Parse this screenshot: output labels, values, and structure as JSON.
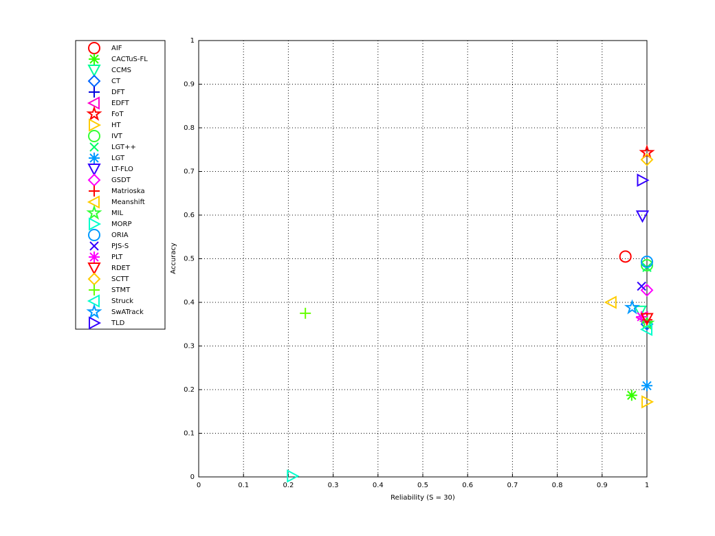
{
  "chart_data": {
    "type": "scatter",
    "x_label": "Reliability (S = 30)",
    "y_label": "Accuracy",
    "xlim": [
      0,
      1
    ],
    "ylim": [
      0,
      1
    ],
    "xticks": [
      0,
      0.1,
      0.2,
      0.3,
      0.4,
      0.5,
      0.6,
      0.7,
      0.8,
      0.9,
      1
    ],
    "yticks": [
      0,
      0.1,
      0.2,
      0.3,
      0.4,
      0.5,
      0.6,
      0.7,
      0.8,
      0.9,
      1
    ],
    "grid": true,
    "legend": "outside-left",
    "series": [
      {
        "name": "AIF",
        "color": "#ff0000",
        "marker": "circle",
        "x": [
          0.952
        ],
        "y": [
          0.505
        ]
      },
      {
        "name": "CACTuS-FL",
        "color": "#33ff00",
        "marker": "asterisk",
        "x": [
          0.966
        ],
        "y": [
          0.187
        ]
      },
      {
        "name": "CCMS",
        "color": "#00ff99",
        "marker": "triangle-down",
        "x": [
          0.985
        ],
        "y": [
          0.38
        ]
      },
      {
        "name": "CT",
        "color": "#0066ff",
        "marker": "diamond",
        "x": [
          1
        ],
        "y": [
          0.35
        ]
      },
      {
        "name": "DFT",
        "color": "#0000dd",
        "marker": "plus",
        "x": [
          1
        ],
        "y": [
          0.355
        ]
      },
      {
        "name": "EDFT",
        "color": "#ff00cc",
        "marker": "triangle-left",
        "x": [
          0.99
        ],
        "y": [
          0.365
        ]
      },
      {
        "name": "FoT",
        "color": "#ff0000",
        "marker": "star",
        "x": [
          1
        ],
        "y": [
          0.743
        ]
      },
      {
        "name": "HT",
        "color": "#ffcc00",
        "marker": "triangle-right",
        "x": [
          1
        ],
        "y": [
          0.172
        ]
      },
      {
        "name": "IVT",
        "color": "#33ff33",
        "marker": "circle",
        "x": [
          1
        ],
        "y": [
          0.485
        ]
      },
      {
        "name": "LGT++",
        "color": "#00ff66",
        "marker": "x",
        "x": [
          1
        ],
        "y": [
          0.48
        ]
      },
      {
        "name": "LGT",
        "color": "#0099ff",
        "marker": "asterisk",
        "x": [
          1
        ],
        "y": [
          0.209
        ]
      },
      {
        "name": "LT-FLO",
        "color": "#3300ff",
        "marker": "triangle-down",
        "x": [
          0.99
        ],
        "y": [
          0.598
        ]
      },
      {
        "name": "GSDT",
        "color": "#ff00ff",
        "marker": "diamond",
        "x": [
          1
        ],
        "y": [
          0.428
        ]
      },
      {
        "name": "Matrioska",
        "color": "#ff0000",
        "marker": "plus",
        "x": [
          1
        ],
        "y": [
          0.36
        ]
      },
      {
        "name": "Meanshift",
        "color": "#ffcc00",
        "marker": "triangle-left",
        "x": [
          0.92
        ],
        "y": [
          0.4
        ]
      },
      {
        "name": "MIL",
        "color": "#33ff33",
        "marker": "star",
        "x": [
          1
        ],
        "y": [
          0.352
        ]
      },
      {
        "name": "MORP",
        "color": "#00ffcc",
        "marker": "triangle-right",
        "x": [
          0.209
        ],
        "y": [
          0.002
        ]
      },
      {
        "name": "ORIA",
        "color": "#0099ff",
        "marker": "circle",
        "x": [
          1
        ],
        "y": [
          0.493
        ]
      },
      {
        "name": "PJS-S",
        "color": "#3300ff",
        "marker": "x",
        "x": [
          0.988
        ],
        "y": [
          0.437
        ]
      },
      {
        "name": "PLT",
        "color": "#ff00ff",
        "marker": "asterisk",
        "x": [
          0.988
        ],
        "y": [
          0.367
        ]
      },
      {
        "name": "RDET",
        "color": "#ff0000",
        "marker": "triangle-down",
        "x": [
          1
        ],
        "y": [
          0.363
        ]
      },
      {
        "name": "SCTT",
        "color": "#ffcc00",
        "marker": "diamond",
        "x": [
          1
        ],
        "y": [
          0.727
        ]
      },
      {
        "name": "STMT",
        "color": "#66ff00",
        "marker": "plus",
        "x": [
          0.238
        ],
        "y": [
          0.375
        ]
      },
      {
        "name": "Struck",
        "color": "#00ffcc",
        "marker": "triangle-left",
        "x": [
          1
        ],
        "y": [
          0.338
        ]
      },
      {
        "name": "SwATrack",
        "color": "#0099ff",
        "marker": "star",
        "x": [
          0.967
        ],
        "y": [
          0.388
        ]
      },
      {
        "name": "TLD",
        "color": "#3300ff",
        "marker": "triangle-right",
        "x": [
          0.99
        ],
        "y": [
          0.68
        ]
      }
    ]
  }
}
